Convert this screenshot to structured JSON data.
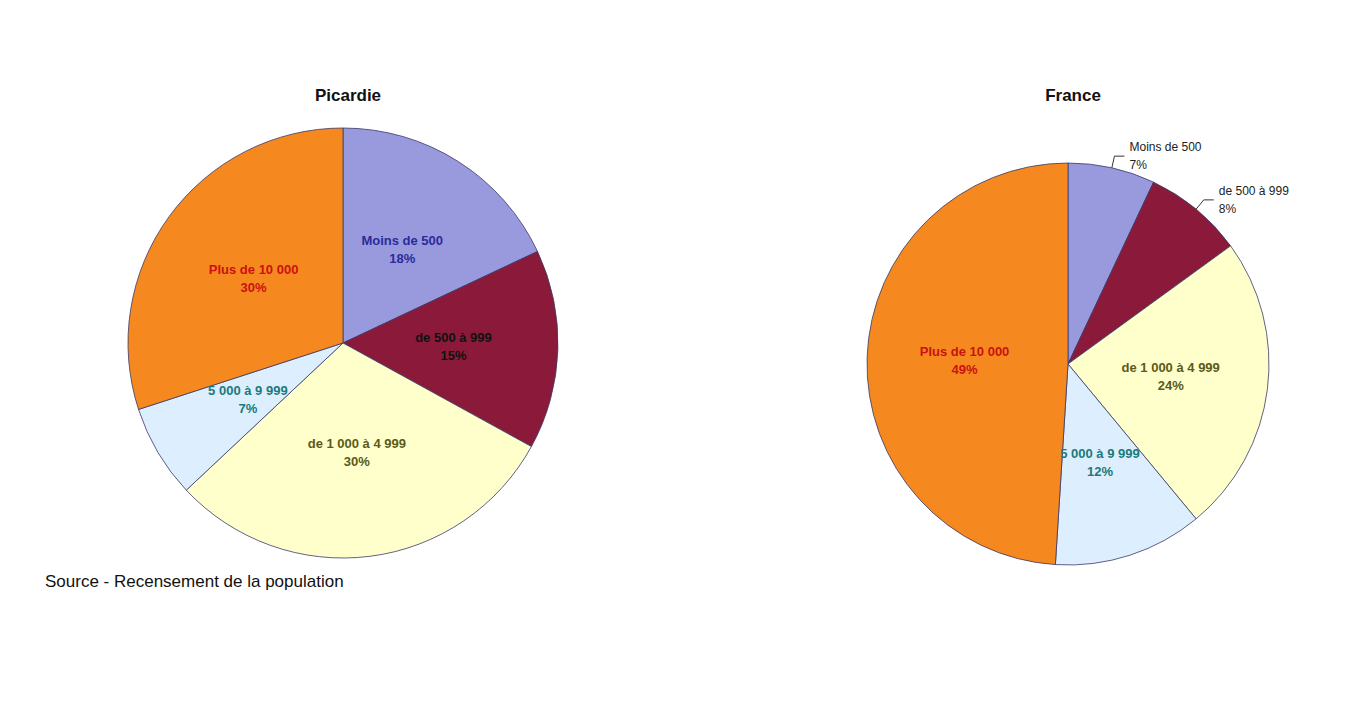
{
  "chart_data": [
    {
      "type": "pie",
      "title": "Picardie",
      "categories": [
        "Moins de 500",
        "de 500 à 999",
        "de 1 000 à 4 999",
        "5 000 à 9 999",
        "Plus de 10 000"
      ],
      "values": [
        18,
        15,
        30,
        7,
        30
      ],
      "value_labels": [
        "18%",
        "15%",
        "30%",
        "7%",
        "30%"
      ],
      "colors": [
        "#9999dd",
        "#8b1a3a",
        "#ffffcc",
        "#ddeeff",
        "#f5891f"
      ],
      "data_labels": true,
      "annotation": "Source - Recensement de la population"
    },
    {
      "type": "pie",
      "title": "France",
      "categories": [
        "Moins de 500",
        "de 500 à 999",
        "de 1 000 à 4 999",
        "5 000 à 9 999",
        "Plus de 10 000"
      ],
      "values": [
        7,
        8,
        24,
        12,
        49
      ],
      "value_labels": [
        "7%",
        "8%",
        "24%",
        "12%",
        "49%"
      ],
      "colors": [
        "#9999dd",
        "#8b1a3a",
        "#ffffcc",
        "#ddeeff",
        "#f5891f"
      ],
      "data_labels": true
    }
  ]
}
